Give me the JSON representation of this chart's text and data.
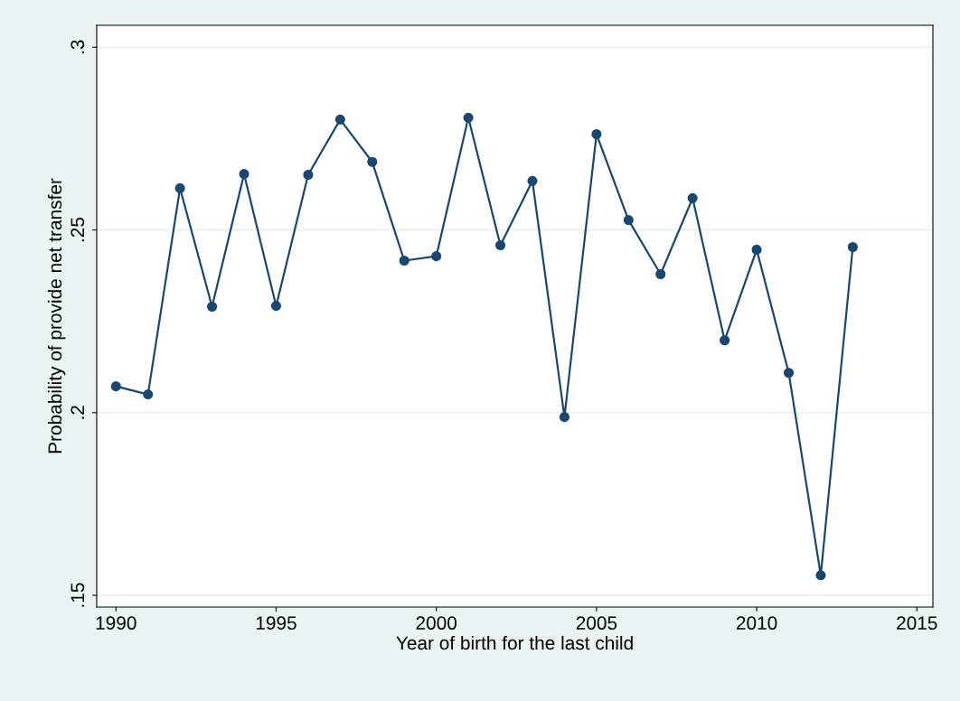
{
  "chart_data": {
    "type": "line",
    "xlabel": "Year of birth for the last child",
    "ylabel": "Probability of provide net transfer",
    "x": [
      1990,
      1991,
      1992,
      1993,
      1994,
      1995,
      1996,
      1997,
      1998,
      1999,
      2000,
      2001,
      2002,
      2003,
      2004,
      2005,
      2006,
      2007,
      2008,
      2009,
      2010,
      2011,
      2012,
      2013
    ],
    "series": [
      {
        "color": "#1a476f",
        "values": [
          0.2072,
          0.205,
          0.2614,
          0.229,
          0.2653,
          0.2292,
          0.2651,
          0.2802,
          0.2686,
          0.2416,
          0.2428,
          0.2807,
          0.2458,
          0.2634,
          0.1988,
          0.2762,
          0.2527,
          0.2379,
          0.2587,
          0.2198,
          0.2446,
          0.2109,
          0.1555,
          0.2453
        ]
      }
    ],
    "xlim": [
      1989.4,
      2015.5
    ],
    "xticks": [
      1990,
      1995,
      2000,
      2005,
      2010,
      2015
    ],
    "ylim": [
      0.1468,
      0.306
    ],
    "yticks": [
      {
        "value": 0.15,
        "label": ".15"
      },
      {
        "value": 0.2,
        "label": ".2"
      },
      {
        "value": 0.25,
        "label": ".25"
      },
      {
        "value": 0.3,
        "label": ".3"
      }
    ],
    "grid": "y",
    "marker": "circle",
    "line_style": "solid",
    "legend": false
  }
}
